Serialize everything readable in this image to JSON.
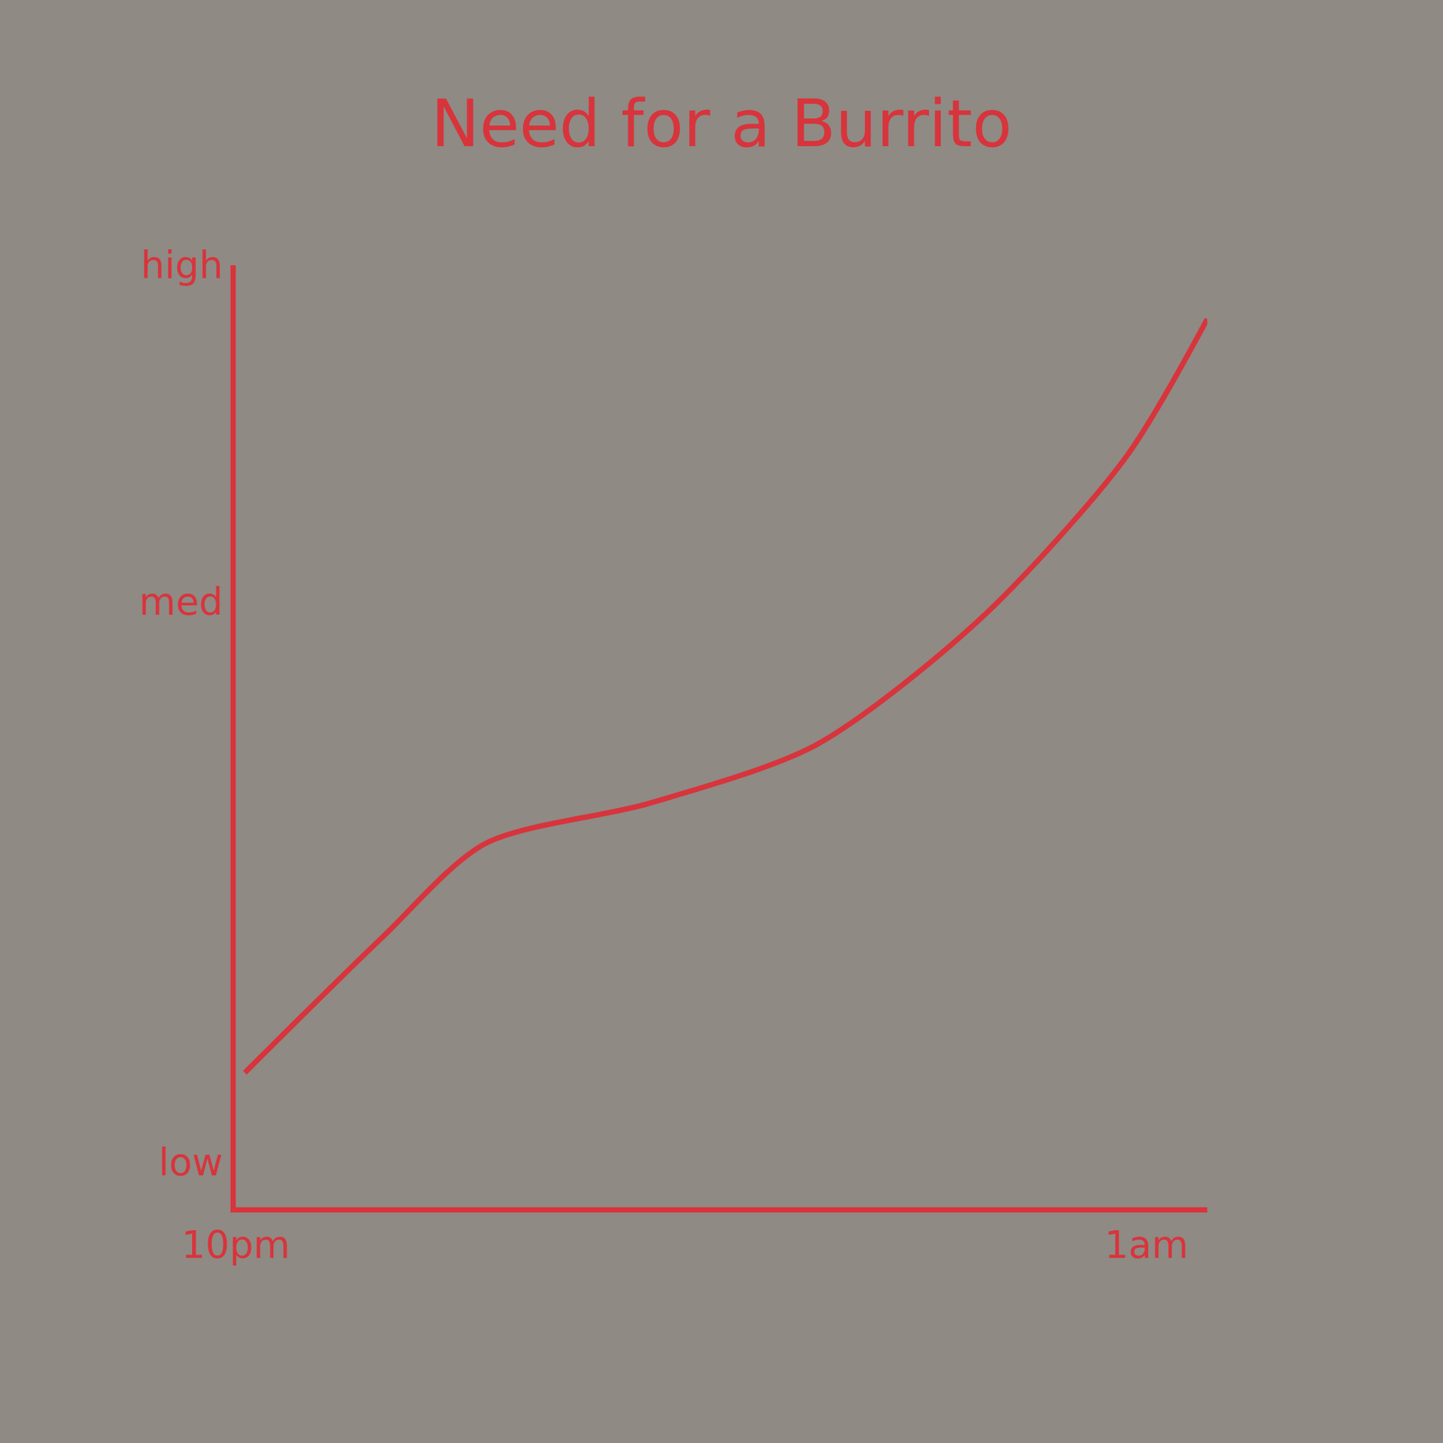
{
  "chart_data": {
    "type": "line",
    "title": "Need for a Burrito",
    "x": [
      22.03,
      22.48,
      22.82,
      23.36,
      23.91,
      24.45,
      24.93,
      25.2
    ],
    "values": [
      0.2,
      0.5,
      0.71,
      0.8,
      0.93,
      1.21,
      1.57,
      1.88
    ],
    "color": "#d8343c",
    "xlim": [
      22,
      25.2
    ],
    "xticks": [
      {
        "value": 22,
        "label": "10pm"
      },
      {
        "value": 25,
        "label": "1am"
      }
    ],
    "ylim": [
      -0.1,
      2
    ],
    "yticks": [
      {
        "value": 0,
        "label": "low"
      },
      {
        "value": 1.25,
        "label": "med"
      },
      {
        "value": 2,
        "label": "high"
      }
    ],
    "grid": false
  }
}
